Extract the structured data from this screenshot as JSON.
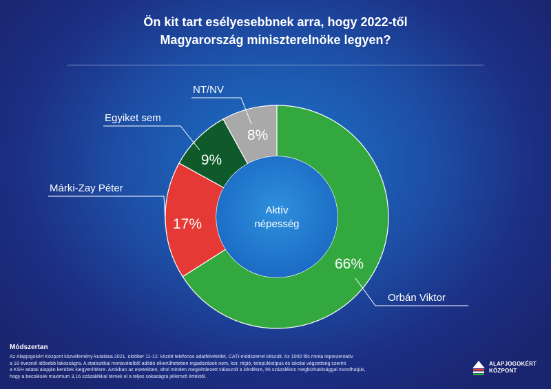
{
  "title_lines": [
    "Ön kit tart esélyesebbnek arra, hogy 2022-től",
    "Magyarország miniszterelnöke legyen?"
  ],
  "chart_data": {
    "type": "donut",
    "center_label": [
      "Aktív",
      "népesség"
    ],
    "categories": [
      "Orbán Viktor",
      "Márki-Zay Péter",
      "Egyiket sem",
      "NT/NV"
    ],
    "values": [
      66,
      17,
      9,
      8
    ],
    "value_labels": [
      "66%",
      "17%",
      "9%",
      "8%"
    ],
    "colors": [
      "#32a83f",
      "#e53935",
      "#0f5a2a",
      "#a9a9a9"
    ]
  },
  "methods": {
    "title": "Módszertan",
    "lines": [
      "Az Alapjogokért Központ közvélemény-kutatása 2021. október 11-12. között telefonos adatfelvétellel, CATI-módszerrel készült. Az 1000 fős minta reprezentatív",
      "a 18 évesnél idősebb lakosságra. A statisztikai mintavételből adódó elkerülhetetlen ingadozások nem, kor, régió, településtípus és iskolai végzettség szerint",
      "a KSH adatai alapján kerültek kiegyenlítésre. Azokban az esetekben, ahol minden megkérdezett válaszolt a kérdésre, 95 százalékos megbízhatósággal mondhatjuk,",
      "hogy a becslések maximum 3,16 százalékkal térnek el a teljes sokaságra jellemző értéktől."
    ]
  },
  "logo": {
    "line1": "ALAPJOGOKÉRT",
    "line2": "KÖZPONT",
    "icon": "alapjogokert-logo-icon"
  }
}
